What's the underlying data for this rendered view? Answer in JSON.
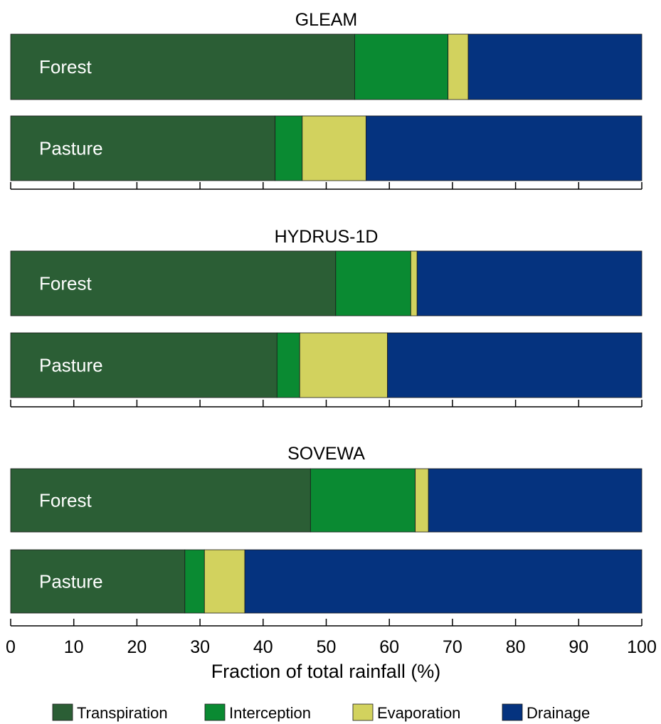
{
  "chart_data": {
    "type": "bar",
    "orientation": "horizontal",
    "stacked": true,
    "xlabel": "Fraction of total rainfall (%)",
    "xlim": [
      0,
      100
    ],
    "x_ticks": [
      0,
      10,
      20,
      30,
      40,
      50,
      60,
      70,
      80,
      90,
      100
    ],
    "tick_labels_shown_on": "bottom panel only",
    "grid": false,
    "legend": {
      "placement": "bottom",
      "entries": [
        "Transpiration",
        "Interception",
        "Evaporation",
        "Drainage"
      ]
    },
    "series_colors": {
      "Transpiration": "#2b5e35",
      "Interception": "#0a8a32",
      "Evaporation": "#d2d25e",
      "Drainage": "#05337f"
    },
    "panels": [
      {
        "title": "GLEAM",
        "categories": [
          "Forest",
          "Pasture"
        ],
        "series": [
          {
            "name": "Transpiration",
            "values": [
              54.5,
              41.9
            ]
          },
          {
            "name": "Interception",
            "values": [
              14.8,
              4.3
            ]
          },
          {
            "name": "Evaporation",
            "values": [
              3.2,
              10.1
            ]
          },
          {
            "name": "Drainage",
            "values": [
              27.5,
              43.7
            ]
          }
        ]
      },
      {
        "title": "HYDRUS-1D",
        "categories": [
          "Forest",
          "Pasture"
        ],
        "series": [
          {
            "name": "Transpiration",
            "values": [
              51.5,
              42.2
            ]
          },
          {
            "name": "Interception",
            "values": [
              11.9,
              3.6
            ]
          },
          {
            "name": "Evaporation",
            "values": [
              1.0,
              13.9
            ]
          },
          {
            "name": "Drainage",
            "values": [
              35.6,
              40.3
            ]
          }
        ]
      },
      {
        "title": "SOVEWA",
        "categories": [
          "Forest",
          "Pasture"
        ],
        "series": [
          {
            "name": "Transpiration",
            "values": [
              47.5,
              27.6
            ]
          },
          {
            "name": "Interception",
            "values": [
              16.6,
              3.1
            ]
          },
          {
            "name": "Evaporation",
            "values": [
              2.1,
              6.4
            ]
          },
          {
            "name": "Drainage",
            "values": [
              33.8,
              62.9
            ]
          }
        ]
      }
    ]
  }
}
